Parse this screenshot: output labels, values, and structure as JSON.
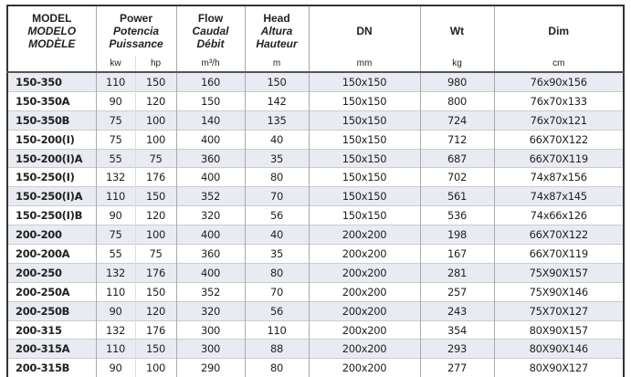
{
  "headers": {
    "model": [
      "MODEL",
      "MODELO",
      "MODÈLE"
    ],
    "power": [
      "Power",
      "Potencia",
      "Puissance"
    ],
    "flow": [
      "Flow",
      "Caudal",
      "Débit"
    ],
    "head": [
      "Head",
      "Altura",
      "Hauteur"
    ],
    "dn": "DN",
    "wt": "Wt",
    "dim": "Dim"
  },
  "units": [
    "kw",
    "hp",
    "m³/h",
    "m",
    "mm",
    "kg",
    "cm"
  ],
  "rows": [
    [
      "150-350",
      "110",
      "150",
      "160",
      "150",
      "150x150",
      "980",
      "76x90x156"
    ],
    [
      "150-350A",
      "90",
      "120",
      "150",
      "142",
      "150x150",
      "800",
      "76x70x133"
    ],
    [
      "150-350B",
      "75",
      "100",
      "140",
      "135",
      "150x150",
      "724",
      "76x70x121"
    ],
    [
      "150-200(I)",
      "75",
      "100",
      "400",
      "40",
      "150x150",
      "712",
      "66X70X122"
    ],
    [
      "150-200(I)A",
      "55",
      "75",
      "360",
      "35",
      "150x150",
      "687",
      "66X70X119"
    ],
    [
      "150-250(I)",
      "132",
      "176",
      "400",
      "80",
      "150x150",
      "702",
      "74x87x156"
    ],
    [
      "150-250(I)A",
      "110",
      "150",
      "352",
      "70",
      "150x150",
      "561",
      "74x87x145"
    ],
    [
      "150-250(I)B",
      "90",
      "120",
      "320",
      "56",
      "150x150",
      "536",
      "74x66x126"
    ],
    [
      "200-200",
      "75",
      "100",
      "400",
      "40",
      "200x200",
      "198",
      "66X70X122"
    ],
    [
      "200-200A",
      "55",
      "75",
      "360",
      "35",
      "200x200",
      "167",
      "66X70X119"
    ],
    [
      "200-250",
      "132",
      "176",
      "400",
      "80",
      "200x200",
      "281",
      "75X90X157"
    ],
    [
      "200-250A",
      "110",
      "150",
      "352",
      "70",
      "200x200",
      "257",
      "75X90X146"
    ],
    [
      "200-250B",
      "90",
      "120",
      "320",
      "56",
      "200x200",
      "243",
      "75X70X127"
    ],
    [
      "200-315",
      "132",
      "176",
      "300",
      "110",
      "200x200",
      "354",
      "80X90X157"
    ],
    [
      "200-315A",
      "110",
      "150",
      "300",
      "88",
      "200x200",
      "293",
      "80X90X146"
    ],
    [
      "200-315B",
      "90",
      "100",
      "290",
      "80",
      "200x200",
      "277",
      "80X90X127"
    ]
  ],
  "colors": {
    "stripe": "#e8ebf2",
    "border": "#333333"
  }
}
